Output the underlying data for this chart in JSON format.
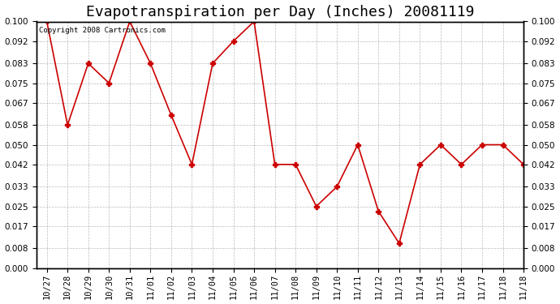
{
  "title": "Evapotranspiration per Day (Inches) 20081119",
  "copyright_text": "Copyright 2008 Cartronics.com",
  "x_ticks": [
    "10/27",
    "10/28",
    "10/29",
    "10/30",
    "10/31",
    "11/01",
    "11/02",
    "11/03",
    "11/04",
    "11/05",
    "11/06",
    "11/07",
    "11/08",
    "11/09",
    "11/10",
    "11/11",
    "11/12",
    "11/13",
    "11/14",
    "11/15",
    "11/16",
    "11/17",
    "11/18"
  ],
  "values": [
    0.1,
    0.058,
    0.083,
    0.075,
    0.1,
    0.083,
    0.062,
    0.042,
    0.083,
    0.092,
    0.1,
    0.042,
    0.042,
    0.025,
    0.033,
    0.05,
    0.023,
    0.01,
    0.042,
    0.05,
    0.042,
    0.05,
    0.05,
    0.042
  ],
  "ylim": [
    0.0,
    0.1
  ],
  "yticks": [
    0.0,
    0.008,
    0.017,
    0.025,
    0.033,
    0.042,
    0.05,
    0.058,
    0.067,
    0.075,
    0.083,
    0.092,
    0.1
  ],
  "line_color": "#CC0000",
  "marker_color": "#CC0000",
  "bg_color": "#FFFFFF",
  "grid_color": "#AAAAAA",
  "title_fontsize": 13,
  "tick_fontsize": 7.5
}
